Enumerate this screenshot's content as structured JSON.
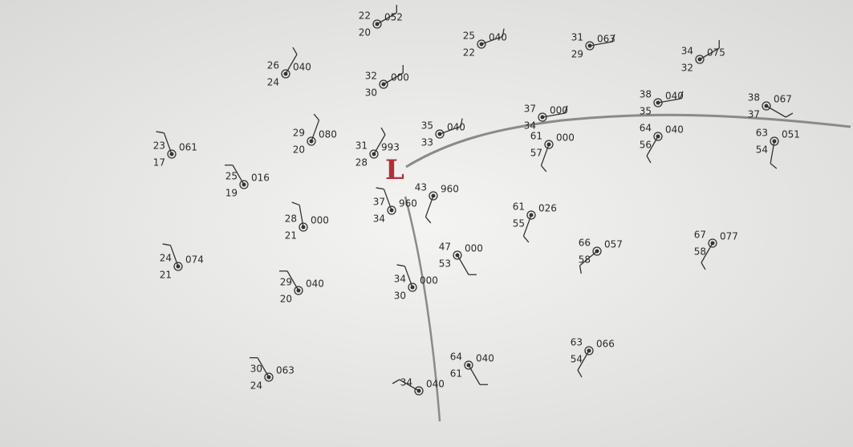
{
  "low_center": "L",
  "stations": [
    {
      "temp": "22",
      "dew": "20",
      "pressure": "052"
    },
    {
      "temp": "25",
      "dew": "22",
      "pressure": "040"
    },
    {
      "temp": "31",
      "dew": "29",
      "pressure": "063"
    },
    {
      "temp": "34",
      "dew": "32",
      "pressure": "075"
    },
    {
      "temp": "26",
      "dew": "24",
      "pressure": "040"
    },
    {
      "temp": "32",
      "dew": "30",
      "pressure": "000"
    },
    {
      "temp": "35",
      "dew": "33",
      "pressure": "040"
    },
    {
      "temp": "37",
      "dew": "34",
      "pressure": "000"
    },
    {
      "temp": "38",
      "dew": "35",
      "pressure": "040"
    },
    {
      "temp": "38",
      "dew": "37",
      "pressure": "067"
    },
    {
      "temp": "61",
      "dew": "57",
      "pressure": "000"
    },
    {
      "temp": "64",
      "dew": "56",
      "pressure": "040"
    },
    {
      "temp": "63",
      "dew": "54",
      "pressure": "051"
    },
    {
      "temp": "23",
      "dew": "17",
      "pressure": "061"
    },
    {
      "temp": "29",
      "dew": "20",
      "pressure": "080"
    },
    {
      "temp": "31",
      "dew": "28",
      "pressure": "993"
    },
    {
      "temp": "25",
      "dew": "19",
      "pressure": "016"
    },
    {
      "temp": "43",
      "pressure": "960"
    },
    {
      "temp": "37",
      "dew": "34",
      "pressure": "960"
    },
    {
      "temp": "28",
      "dew": "21",
      "pressure": "000"
    },
    {
      "temp": "61",
      "dew": "55",
      "pressure": "026"
    },
    {
      "temp": "24",
      "dew": "21",
      "pressure": "074"
    },
    {
      "temp": "47",
      "dew": "53",
      "pressure": "000"
    },
    {
      "temp": "66",
      "dew": "58",
      "pressure": "057"
    },
    {
      "temp": "67",
      "dew": "58",
      "pressure": "077"
    },
    {
      "temp": "29",
      "dew": "20",
      "pressure": "040"
    },
    {
      "temp": "34",
      "dew": "30",
      "pressure": "000"
    },
    {
      "temp": "30",
      "dew": "24",
      "pressure": "063"
    },
    {
      "temp": "64",
      "dew": "61",
      "pressure": "040"
    },
    {
      "temp": "63",
      "dew": "54",
      "pressure": "066"
    },
    {
      "temp": "34",
      "pressure": "040"
    }
  ]
}
